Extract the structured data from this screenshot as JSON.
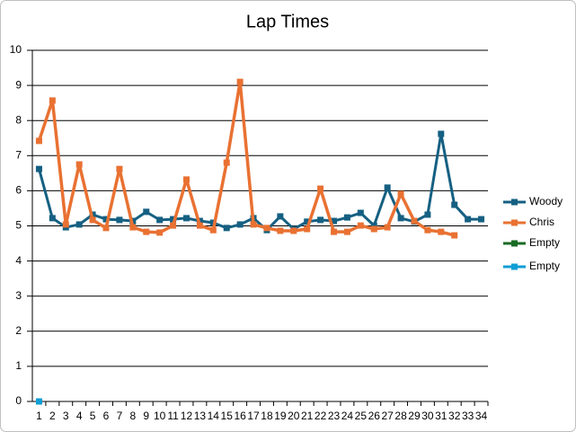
{
  "chart_data": {
    "type": "line",
    "title": "Lap Times",
    "categories": [
      "1",
      "2",
      "3",
      "4",
      "5",
      "6",
      "7",
      "8",
      "9",
      "10",
      "11",
      "12",
      "13",
      "14",
      "15",
      "16",
      "17",
      "18",
      "19",
      "20",
      "21",
      "22",
      "23",
      "24",
      "25",
      "26",
      "27",
      "28",
      "29",
      "30",
      "31",
      "32",
      "33",
      "34"
    ],
    "series": [
      {
        "name": "Woody",
        "color": "#156082",
        "values": [
          6.62,
          5.22,
          4.96,
          5.04,
          5.32,
          5.19,
          5.17,
          5.14,
          5.4,
          5.17,
          5.19,
          5.22,
          5.14,
          5.09,
          4.94,
          5.04,
          5.22,
          4.88,
          5.27,
          4.91,
          5.12,
          5.17,
          5.14,
          5.24,
          5.37,
          5.01,
          6.09,
          5.22,
          5.12,
          5.32,
          7.62,
          5.6,
          5.19,
          5.19
        ]
      },
      {
        "name": "Chris",
        "color": "#e97132",
        "values": [
          7.42,
          8.57,
          5.04,
          6.75,
          5.17,
          4.94,
          6.62,
          4.96,
          4.83,
          4.81,
          5.01,
          6.32,
          5.01,
          4.88,
          6.8,
          9.1,
          5.04,
          4.94,
          4.86,
          4.86,
          4.91,
          6.06,
          4.83,
          4.83,
          5.01,
          4.91,
          4.96,
          5.91,
          5.14,
          4.88,
          4.83,
          4.73,
          null,
          null
        ]
      },
      {
        "name": "Empty",
        "color": "#196b24",
        "values": [
          null,
          null,
          null,
          null,
          null,
          null,
          null,
          null,
          null,
          null,
          null,
          null,
          null,
          null,
          null,
          null,
          null,
          null,
          null,
          null,
          null,
          null,
          null,
          null,
          null,
          null,
          null,
          null,
          null,
          null,
          null,
          null,
          null,
          null
        ]
      },
      {
        "name": "Empty",
        "color": "#0f9ed5",
        "values": [
          0,
          null,
          null,
          null,
          null,
          null,
          null,
          null,
          null,
          null,
          null,
          null,
          null,
          null,
          null,
          null,
          null,
          null,
          null,
          null,
          null,
          null,
          null,
          null,
          null,
          null,
          null,
          null,
          null,
          null,
          null,
          null,
          null,
          null
        ]
      }
    ],
    "ylim": [
      0,
      10
    ],
    "yticks": [
      0,
      1,
      2,
      3,
      4,
      5,
      6,
      7,
      8,
      9,
      10
    ],
    "grid": true,
    "legend": "right"
  }
}
